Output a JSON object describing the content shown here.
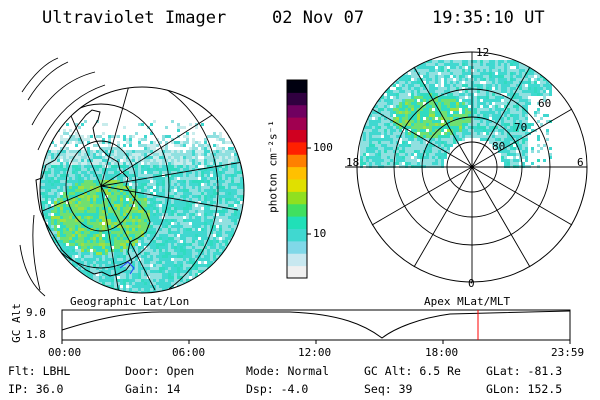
{
  "header": {
    "instrument": "Ultraviolet Imager",
    "date": "02 Nov 07",
    "time": "19:35:10 UT"
  },
  "left_panel": {
    "label": "Geographic Lat/Lon"
  },
  "right_panel": {
    "label": "Apex MLat/MLT",
    "mlt_labels": {
      "top": "12",
      "left": "18",
      "right": "6",
      "bottom": "0"
    },
    "lat_labels": [
      "60",
      "70",
      "80"
    ]
  },
  "colorbar": {
    "unit_label": "photon cm⁻²s⁻¹",
    "ticks": [
      "100",
      "10"
    ],
    "colors": [
      "#f0f0f0",
      "#c8e8f0",
      "#80d8e8",
      "#40d8d0",
      "#20e0b8",
      "#40e060",
      "#90e020",
      "#e0e000",
      "#ffc000",
      "#ff8000",
      "#ff2000",
      "#d00020",
      "#a00050",
      "#700060",
      "#300040",
      "#000010"
    ]
  },
  "altitude_plot": {
    "ylabel": "GC Alt",
    "yticks": [
      "9.0",
      "1.8"
    ],
    "xticks": [
      "00:00",
      "06:00",
      "12:00",
      "18:00",
      "23:59"
    ],
    "current_time_marker": "19:35"
  },
  "footer": {
    "row1": {
      "flt": "Flt: LBHL",
      "door": "Door: Open",
      "mode": "Mode: Normal",
      "gcalt": "GC Alt: 6.5 Re",
      "glat": "GLat: -81.3"
    },
    "row2": {
      "ip": "IP: 36.0",
      "gain": "Gain: 14",
      "dsp": "Dsp:   -4.0",
      "seq": "Seq: 39",
      "glon": "GLon: 152.5"
    }
  }
}
